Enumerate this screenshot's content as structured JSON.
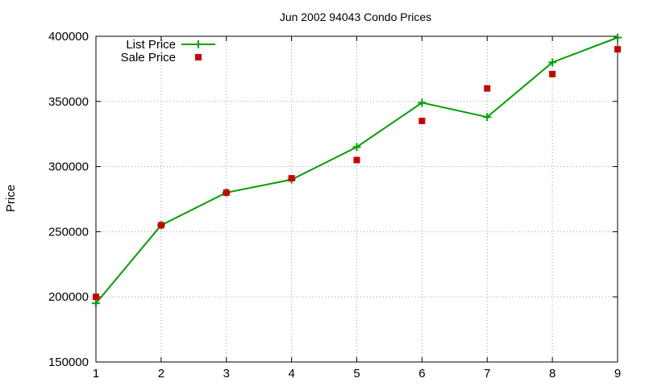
{
  "chart_data": {
    "type": "line",
    "title": "Jun 2002 94043 Condo Prices",
    "xlabel": "",
    "ylabel": "Price",
    "x": [
      1,
      2,
      3,
      4,
      5,
      6,
      7,
      8,
      9
    ],
    "xlim": [
      1,
      9
    ],
    "ylim": [
      150000,
      400000
    ],
    "xticks": [
      1,
      2,
      3,
      4,
      5,
      6,
      7,
      8,
      9
    ],
    "yticks": [
      150000,
      200000,
      250000,
      300000,
      350000,
      400000
    ],
    "grid": true,
    "legend_position": "top-left",
    "series": [
      {
        "name": "List Price",
        "style": "linespoints",
        "marker": "plus",
        "color": "#00a000",
        "values": [
          195000,
          255000,
          280000,
          290000,
          315000,
          349000,
          338000,
          380000,
          399000
        ]
      },
      {
        "name": "Sale Price",
        "style": "points",
        "marker": "square",
        "color": "#cc0000",
        "values": [
          200000,
          255000,
          280000,
          291000,
          305000,
          335000,
          360000,
          371000,
          390000
        ]
      }
    ]
  }
}
